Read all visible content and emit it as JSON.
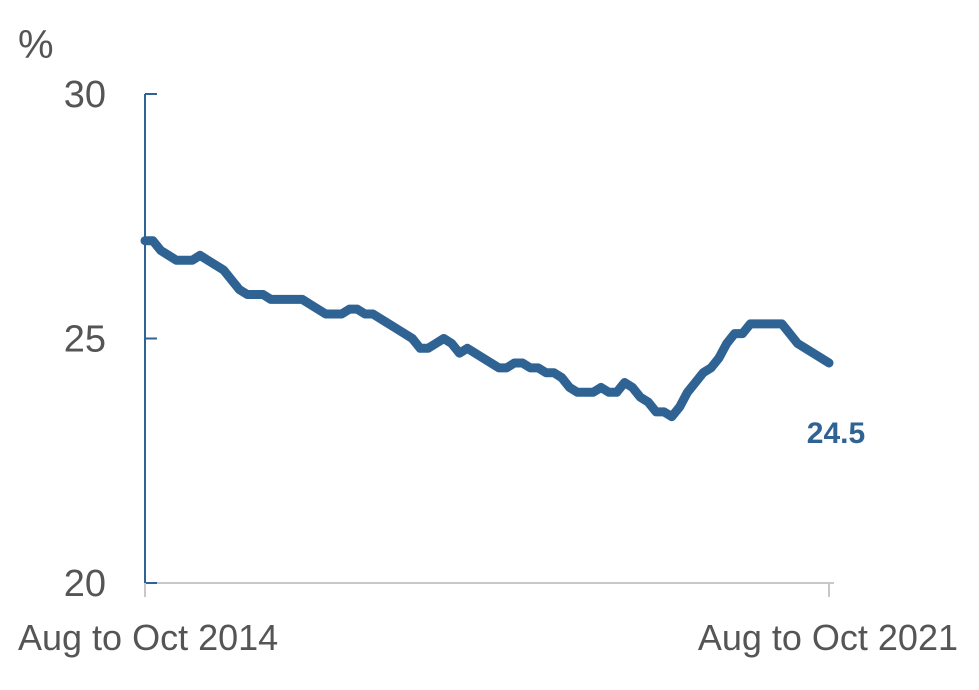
{
  "chart_data": {
    "type": "line",
    "ylabel": "%",
    "ylim": [
      20,
      30
    ],
    "yticks": [
      "20",
      "25",
      "30"
    ],
    "xticks": [
      "Aug to Oct 2014",
      "Aug to Oct 2021"
    ],
    "end_label": "24.5",
    "grid": false,
    "legend": "none",
    "colors": {
      "line": "#2f6394",
      "axis": "#2f6394",
      "text": "#555555"
    },
    "series": [
      {
        "values": [
          27.0,
          27.0,
          26.8,
          26.7,
          26.6,
          26.6,
          26.6,
          26.7,
          26.6,
          26.5,
          26.4,
          26.2,
          26.0,
          25.9,
          25.9,
          25.9,
          25.8,
          25.8,
          25.8,
          25.8,
          25.8,
          25.7,
          25.6,
          25.5,
          25.5,
          25.5,
          25.6,
          25.6,
          25.5,
          25.5,
          25.4,
          25.3,
          25.2,
          25.1,
          25.0,
          24.8,
          24.8,
          24.9,
          25.0,
          24.9,
          24.7,
          24.8,
          24.7,
          24.6,
          24.5,
          24.4,
          24.4,
          24.5,
          24.5,
          24.4,
          24.4,
          24.3,
          24.3,
          24.2,
          24.0,
          23.9,
          23.9,
          23.9,
          24.0,
          23.9,
          23.9,
          24.1,
          24.0,
          23.8,
          23.7,
          23.5,
          23.5,
          23.4,
          23.6,
          23.9,
          24.1,
          24.3,
          24.4,
          24.6,
          24.9,
          25.1,
          25.1,
          25.3,
          25.3,
          25.3,
          25.3,
          25.3,
          25.1,
          24.9,
          24.8,
          24.7,
          24.6,
          24.5
        ]
      }
    ]
  }
}
